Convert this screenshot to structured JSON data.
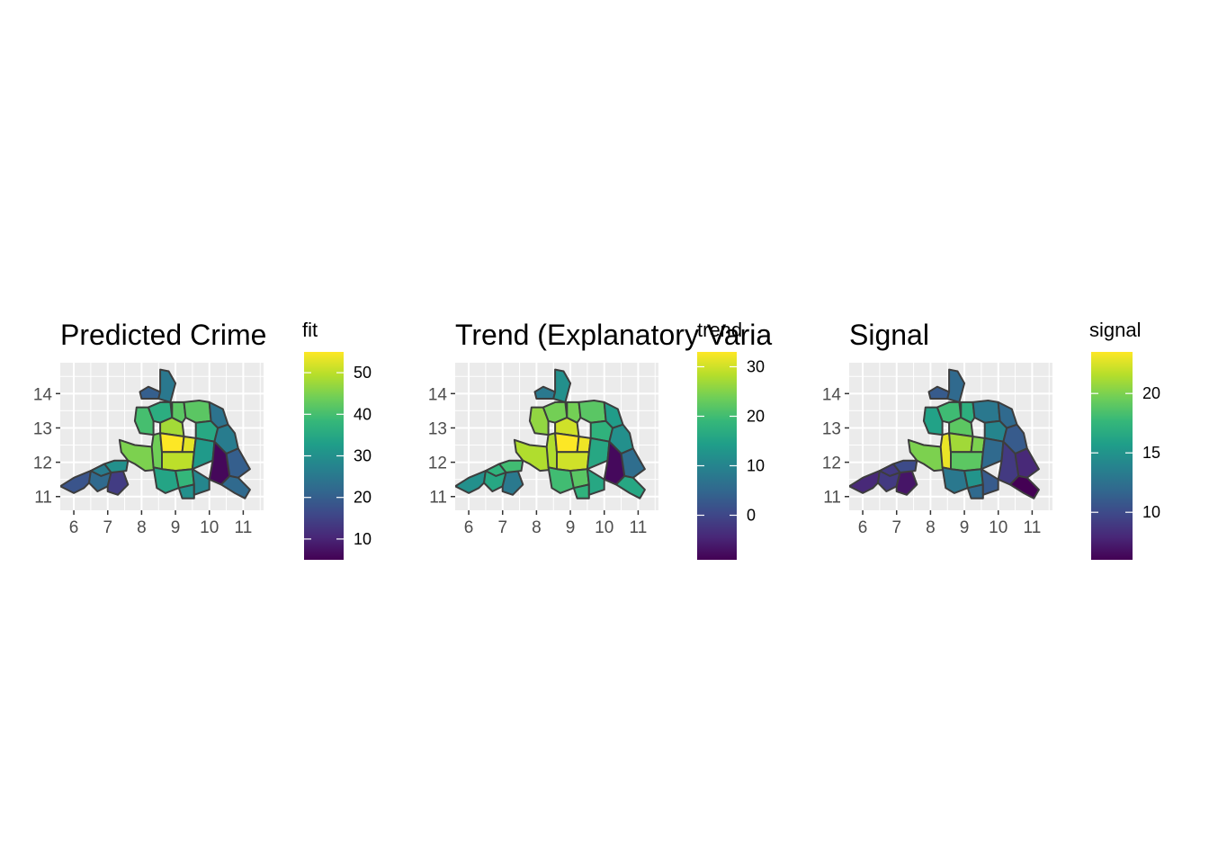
{
  "chart_data": [
    {
      "type": "heatmap",
      "title": "Predicted Crime",
      "legend": {
        "title": "fit",
        "min": 5,
        "max": 55,
        "ticks": [
          10,
          20,
          30,
          40,
          50
        ]
      },
      "x_ticks": [
        6,
        7,
        8,
        9,
        10,
        11
      ],
      "y_ticks": [
        11,
        12,
        13,
        14
      ],
      "xlim": [
        5.6,
        11.6
      ],
      "ylim": [
        10.6,
        14.9
      ],
      "grid": true,
      "regions": [
        {
          "id": "sw1",
          "value": 18
        },
        {
          "id": "sw2",
          "value": 22
        },
        {
          "id": "sw3",
          "value": 14
        },
        {
          "id": "sw4",
          "value": 30
        },
        {
          "id": "sw5",
          "value": 26
        },
        {
          "id": "w1",
          "value": 45
        },
        {
          "id": "n1",
          "value": 20
        },
        {
          "id": "n2",
          "value": 25
        },
        {
          "id": "nw1",
          "value": 40
        },
        {
          "id": "nw2",
          "value": 36
        },
        {
          "id": "c1",
          "value": 44
        },
        {
          "id": "c2",
          "value": 48
        },
        {
          "id": "c3",
          "value": 55
        },
        {
          "id": "c4",
          "value": 53
        },
        {
          "id": "c5",
          "value": 50
        },
        {
          "id": "c6",
          "value": 42
        },
        {
          "id": "ne1",
          "value": 42
        },
        {
          "id": "ne2",
          "value": 35
        },
        {
          "id": "e1",
          "value": 32
        },
        {
          "id": "e2",
          "value": 26
        },
        {
          "id": "e3",
          "value": 6
        },
        {
          "id": "e4",
          "value": 20
        },
        {
          "id": "e5",
          "value": 24
        },
        {
          "id": "s1",
          "value": 34
        },
        {
          "id": "s2",
          "value": 38
        },
        {
          "id": "s3",
          "value": 30
        },
        {
          "id": "s4",
          "value": 28
        },
        {
          "id": "se1",
          "value": 22
        }
      ]
    },
    {
      "type": "heatmap",
      "title": "Trend (Explanatory Varia",
      "legend": {
        "title": "trend",
        "min": -9,
        "max": 33,
        "ticks": [
          0,
          10,
          20,
          30
        ]
      },
      "x_ticks": [
        6,
        7,
        8,
        9,
        10,
        11
      ],
      "y_ticks": [
        11,
        12,
        13,
        14
      ],
      "xlim": [
        5.6,
        11.6
      ],
      "ylim": [
        10.6,
        14.9
      ],
      "grid": true,
      "regions": [
        {
          "id": "sw1",
          "value": 12
        },
        {
          "id": "sw2",
          "value": 16
        },
        {
          "id": "sw3",
          "value": 8
        },
        {
          "id": "sw4",
          "value": 20
        },
        {
          "id": "sw5",
          "value": 18
        },
        {
          "id": "w1",
          "value": 28
        },
        {
          "id": "n1",
          "value": 8
        },
        {
          "id": "n2",
          "value": 12
        },
        {
          "id": "nw1",
          "value": 26
        },
        {
          "id": "nw2",
          "value": 24
        },
        {
          "id": "c1",
          "value": 28
        },
        {
          "id": "c2",
          "value": 30
        },
        {
          "id": "c3",
          "value": 33
        },
        {
          "id": "c4",
          "value": 32
        },
        {
          "id": "c5",
          "value": 30
        },
        {
          "id": "c6",
          "value": 24
        },
        {
          "id": "ne1",
          "value": 22
        },
        {
          "id": "ne2",
          "value": 18
        },
        {
          "id": "e1",
          "value": 16
        },
        {
          "id": "e2",
          "value": 12
        },
        {
          "id": "e3",
          "value": -8
        },
        {
          "id": "e4",
          "value": 6
        },
        {
          "id": "e5",
          "value": 14
        },
        {
          "id": "s1",
          "value": 20
        },
        {
          "id": "s2",
          "value": 22
        },
        {
          "id": "s3",
          "value": 18
        },
        {
          "id": "s4",
          "value": 16
        },
        {
          "id": "se1",
          "value": 16
        }
      ]
    },
    {
      "type": "heatmap",
      "title": "Signal",
      "legend": {
        "title": "signal",
        "min": 6,
        "max": 23.5,
        "ticks": [
          10,
          15,
          20
        ]
      },
      "x_ticks": [
        6,
        7,
        8,
        9,
        10,
        11
      ],
      "y_ticks": [
        11,
        12,
        13,
        14
      ],
      "xlim": [
        5.6,
        11.6
      ],
      "ylim": [
        10.6,
        14.9
      ],
      "grid": true,
      "regions": [
        {
          "id": "sw1",
          "value": 8
        },
        {
          "id": "sw2",
          "value": 9
        },
        {
          "id": "sw3",
          "value": 7
        },
        {
          "id": "sw4",
          "value": 10
        },
        {
          "id": "sw5",
          "value": 9
        },
        {
          "id": "w1",
          "value": 20
        },
        {
          "id": "n1",
          "value": 11
        },
        {
          "id": "n2",
          "value": 12
        },
        {
          "id": "nw1",
          "value": 16
        },
        {
          "id": "nw2",
          "value": 18
        },
        {
          "id": "c1",
          "value": 23
        },
        {
          "id": "c2",
          "value": 19
        },
        {
          "id": "c3",
          "value": 21
        },
        {
          "id": "c4",
          "value": 20
        },
        {
          "id": "c5",
          "value": 19
        },
        {
          "id": "c6",
          "value": 17
        },
        {
          "id": "ne1",
          "value": 13
        },
        {
          "id": "ne2",
          "value": 14
        },
        {
          "id": "e1",
          "value": 12
        },
        {
          "id": "e2",
          "value": 11
        },
        {
          "id": "e3",
          "value": 9
        },
        {
          "id": "e4",
          "value": 8
        },
        {
          "id": "e5",
          "value": 12
        },
        {
          "id": "s1",
          "value": 13
        },
        {
          "id": "s2",
          "value": 15
        },
        {
          "id": "s3",
          "value": 12
        },
        {
          "id": "s4",
          "value": 11
        },
        {
          "id": "se1",
          "value": 6
        }
      ]
    }
  ]
}
